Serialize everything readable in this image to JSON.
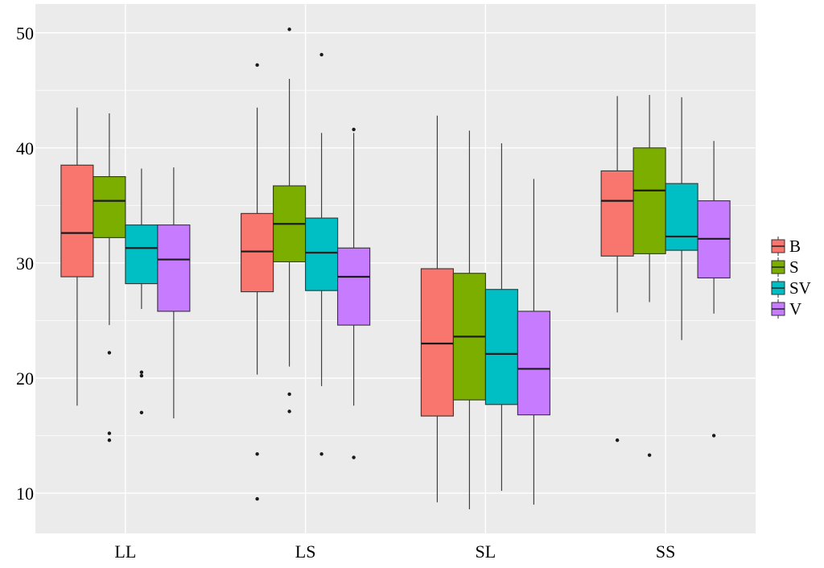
{
  "chart_data": {
    "type": "box",
    "title": "",
    "xlabel": "",
    "ylabel": "",
    "categories": [
      "LL",
      "LS",
      "SL",
      "SS"
    ],
    "ylim": [
      6.5,
      52.5
    ],
    "yticks": [
      10,
      20,
      30,
      40,
      50
    ],
    "grid": true,
    "legend_position": "right",
    "series": [
      {
        "name": "B",
        "color": "#F8766D",
        "boxes": [
          {
            "category": "LL",
            "whisker_low": 17.6,
            "q1": 28.8,
            "median": 32.6,
            "q3": 38.5,
            "whisker_high": 43.5,
            "outliers": []
          },
          {
            "category": "LS",
            "whisker_low": 20.3,
            "q1": 27.5,
            "median": 31.0,
            "q3": 34.3,
            "whisker_high": 43.5,
            "outliers": [
              47.2,
              13.4,
              9.5
            ]
          },
          {
            "category": "SL",
            "whisker_low": 9.2,
            "q1": 16.7,
            "median": 23.0,
            "q3": 29.5,
            "whisker_high": 42.8,
            "outliers": []
          },
          {
            "category": "SS",
            "whisker_low": 25.7,
            "q1": 30.6,
            "median": 35.4,
            "q3": 38.0,
            "whisker_high": 44.5,
            "outliers": [
              14.6
            ]
          }
        ]
      },
      {
        "name": "S",
        "color": "#7CAE00",
        "boxes": [
          {
            "category": "LL",
            "whisker_low": 24.6,
            "q1": 32.2,
            "median": 35.4,
            "q3": 37.5,
            "whisker_high": 43.0,
            "outliers": [
              22.2,
              15.2,
              14.6
            ]
          },
          {
            "category": "LS",
            "whisker_low": 21.0,
            "q1": 30.1,
            "median": 33.4,
            "q3": 36.7,
            "whisker_high": 46.0,
            "outliers": [
              50.3,
              18.6,
              17.1
            ]
          },
          {
            "category": "SL",
            "whisker_low": 8.6,
            "q1": 18.1,
            "median": 23.6,
            "q3": 29.1,
            "whisker_high": 41.5,
            "outliers": []
          },
          {
            "category": "SS",
            "whisker_low": 26.6,
            "q1": 30.8,
            "median": 36.3,
            "q3": 40.0,
            "whisker_high": 44.6,
            "outliers": [
              13.3
            ]
          }
        ]
      },
      {
        "name": "SV",
        "color": "#00BFC4",
        "boxes": [
          {
            "category": "LL",
            "whisker_low": 26.0,
            "q1": 28.2,
            "median": 31.3,
            "q3": 33.3,
            "whisker_high": 38.2,
            "outliers": [
              20.5,
              20.2,
              17.0
            ]
          },
          {
            "category": "LS",
            "whisker_low": 19.3,
            "q1": 27.6,
            "median": 30.9,
            "q3": 33.9,
            "whisker_high": 41.3,
            "outliers": [
              48.1,
              13.4
            ]
          },
          {
            "category": "SL",
            "whisker_low": 10.2,
            "q1": 17.7,
            "median": 22.1,
            "q3": 27.7,
            "whisker_high": 40.4,
            "outliers": []
          },
          {
            "category": "SS",
            "whisker_low": 23.3,
            "q1": 31.1,
            "median": 32.3,
            "q3": 36.9,
            "whisker_high": 44.4,
            "outliers": []
          }
        ]
      },
      {
        "name": "V",
        "color": "#C77CFF",
        "boxes": [
          {
            "category": "LL",
            "whisker_low": 16.5,
            "q1": 25.8,
            "median": 30.3,
            "q3": 33.3,
            "whisker_high": 38.3,
            "outliers": []
          },
          {
            "category": "LS",
            "whisker_low": 17.6,
            "q1": 24.6,
            "median": 28.8,
            "q3": 31.3,
            "whisker_high": 41.3,
            "outliers": [
              41.6,
              13.1
            ]
          },
          {
            "category": "SL",
            "whisker_low": 9.0,
            "q1": 16.8,
            "median": 20.8,
            "q3": 25.8,
            "whisker_high": 37.3,
            "outliers": []
          },
          {
            "category": "SS",
            "whisker_low": 25.6,
            "q1": 28.7,
            "median": 32.1,
            "q3": 35.4,
            "whisker_high": 40.6,
            "outliers": [
              15.0
            ]
          }
        ]
      }
    ]
  }
}
